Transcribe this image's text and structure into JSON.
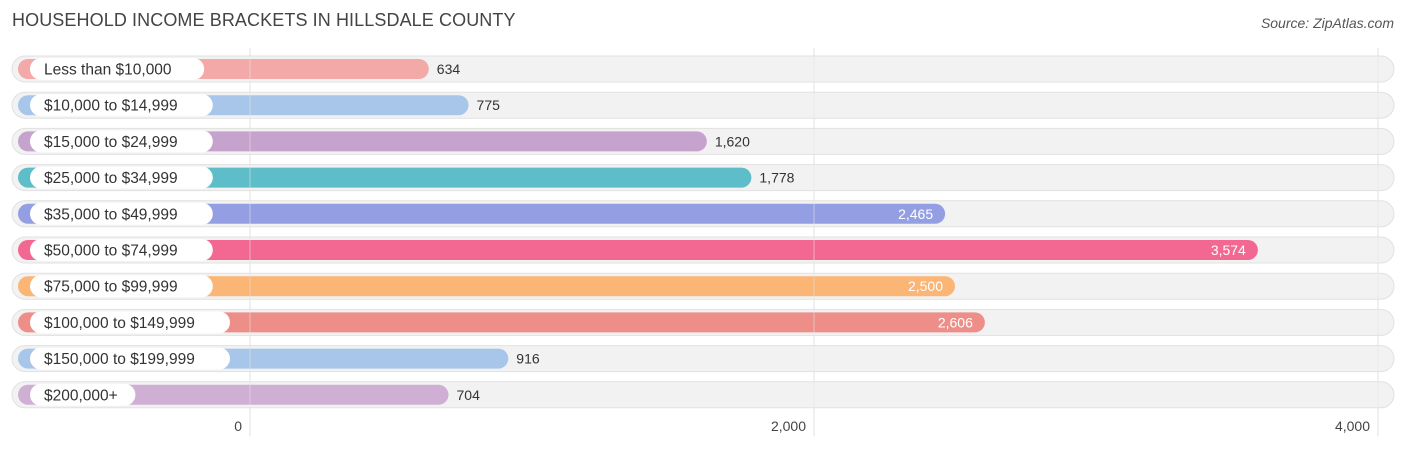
{
  "title": "HOUSEHOLD INCOME BRACKETS IN HILLSDALE COUNTY",
  "source": "Source: ZipAtlas.com",
  "chart_data": {
    "type": "bar",
    "orientation": "horizontal",
    "title": "HOUSEHOLD INCOME BRACKETS IN HILLSDALE COUNTY",
    "xlim": [
      0,
      4000
    ],
    "x_ticks": [
      0,
      2000,
      4000
    ],
    "x_tick_labels": [
      "0",
      "2,000",
      "4,000"
    ],
    "grid": true,
    "categories": [
      "Less than $10,000",
      "$10,000 to $14,999",
      "$15,000 to $24,999",
      "$25,000 to $34,999",
      "$35,000 to $49,999",
      "$50,000 to $74,999",
      "$75,000 to $99,999",
      "$100,000 to $149,999",
      "$150,000 to $199,999",
      "$200,000+"
    ],
    "values": [
      634,
      775,
      1620,
      1778,
      2465,
      3574,
      2500,
      2606,
      916,
      704
    ],
    "value_labels": [
      "634",
      "775",
      "1,620",
      "1,778",
      "2,465",
      "3,574",
      "2,500",
      "2,606",
      "916",
      "704"
    ],
    "colors": [
      "#f4a9a9",
      "#a7c6e9",
      "#c6a3cc",
      "#5dbdc9",
      "#949fe3",
      "#f26892",
      "#fbb575",
      "#ee8e89",
      "#a7c6e9",
      "#cfb0d4"
    ]
  }
}
